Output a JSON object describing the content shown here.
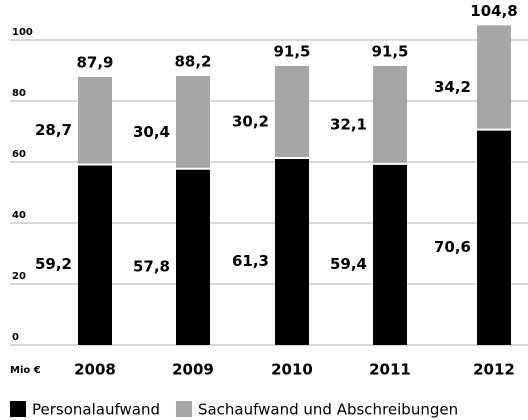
{
  "chart_data": {
    "type": "stacked_bar",
    "categories": [
      "2008",
      "2009",
      "2010",
      "2011",
      "2012"
    ],
    "series": [
      {
        "name": "Personalaufwand",
        "color": "#000000",
        "values": [
          59.2,
          57.8,
          61.3,
          59.4,
          70.6
        ],
        "value_labels": [
          "59,2",
          "57,8",
          "61,3",
          "59,4",
          "70,6"
        ]
      },
      {
        "name": "Sachaufwand und Abschreibungen",
        "color": "#a6a6a6",
        "values": [
          28.7,
          30.4,
          30.2,
          32.1,
          34.2
        ],
        "value_labels": [
          "28,7",
          "30,4",
          "30,2",
          "32,1",
          "34,2"
        ]
      }
    ],
    "total_labels": [
      "87,9",
      "88,2",
      "91,5",
      "91,5",
      "104,8"
    ],
    "unit_label": "Mio €",
    "ylim": [
      0,
      100
    ],
    "yticks": [
      0,
      20,
      40,
      60,
      80,
      100
    ],
    "grid": true
  }
}
